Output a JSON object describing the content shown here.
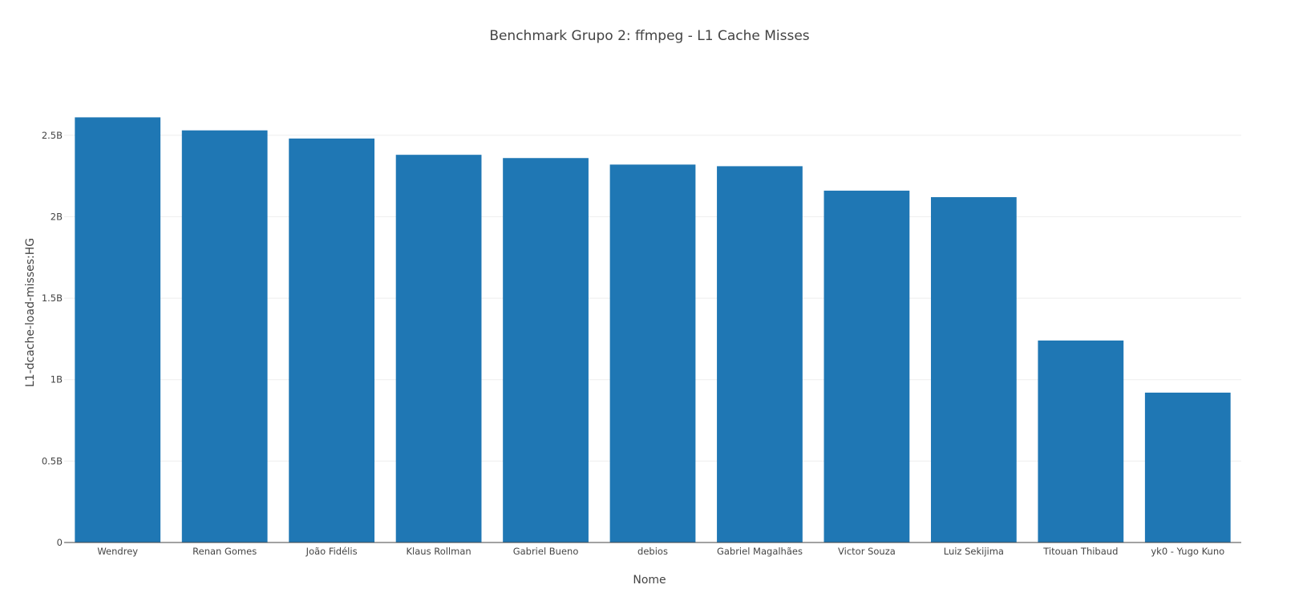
{
  "chart_data": {
    "type": "bar",
    "title": "Benchmark Grupo 2: ffmpeg - L1 Cache Misses",
    "xlabel": "Nome",
    "ylabel": "L1-dcache-load-misses:HG",
    "categories": [
      "Wendrey",
      "Renan Gomes",
      "João Fidélis",
      "Klaus Rollman",
      "Gabriel Bueno",
      "debios",
      "Gabriel Magalhães",
      "Victor Souza",
      "Luiz Sekijima",
      "Titouan Thibaud",
      "yk0 - Yugo Kuno"
    ],
    "values": [
      2610000000,
      2530000000,
      2480000000,
      2380000000,
      2360000000,
      2320000000,
      2310000000,
      2160000000,
      2120000000,
      1240000000,
      920000000
    ],
    "ylim": [
      0,
      2740000000
    ],
    "yticks": [
      0,
      500000000,
      1000000000,
      1500000000,
      2000000000,
      2500000000
    ],
    "ytick_labels": [
      "0",
      "0.5B",
      "1B",
      "1.5B",
      "2B",
      "2.5B"
    ],
    "grid": true,
    "bar_color": "#1f77b4"
  }
}
